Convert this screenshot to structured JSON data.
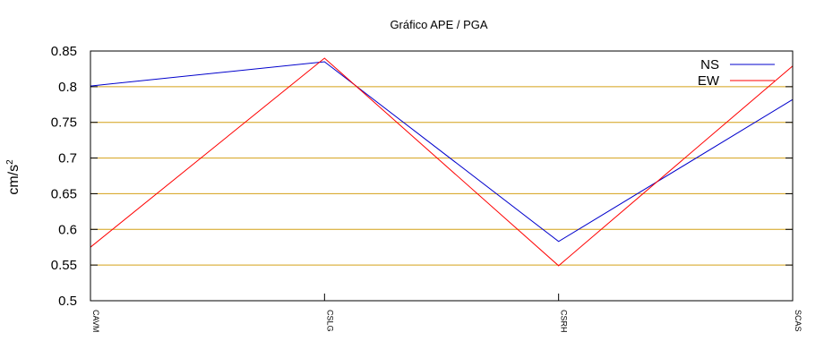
{
  "chart_data": {
    "type": "line",
    "title": "Gráfico  APE / PGA",
    "ylabel": "cm/s",
    "ylabel_sup": "2",
    "xlabel": "",
    "categories": [
      "CAVM",
      "CSLG",
      "CSRH",
      "SCAS"
    ],
    "ylim": [
      0.5,
      0.85
    ],
    "yticks": [
      "0.5",
      "0.55",
      "0.6",
      "0.65",
      "0.7",
      "0.75",
      "0.8",
      "0.85"
    ],
    "grid": "horizontal",
    "legend_position": "top-right",
    "series": [
      {
        "name": "NS",
        "color": "#0000cc",
        "values": [
          0.801,
          0.835,
          0.583,
          0.782
        ]
      },
      {
        "name": "EW",
        "color": "#ff0000",
        "values": [
          0.575,
          0.84,
          0.549,
          0.829
        ]
      }
    ],
    "grid_color": "#d4a017"
  }
}
